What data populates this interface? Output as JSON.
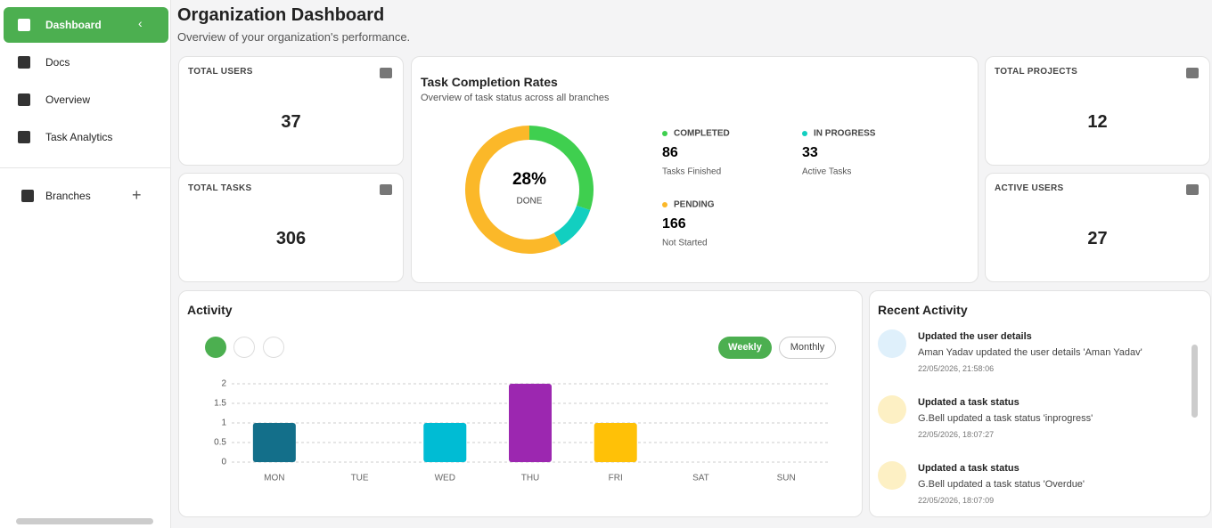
{
  "sidebar": {
    "items": [
      "Dashboard",
      "Docs",
      "Overview",
      "Task Analytics"
    ],
    "branches": "Branches"
  },
  "header": {
    "title": "Organization Dashboard",
    "subtitle": "Overview of your organization's performance."
  },
  "stats": [
    {
      "label": "TOTAL USERS",
      "value": 37
    },
    {
      "label": "TOTAL TASKS",
      "value": 306
    },
    {
      "label": "TOTAL PROJECTS",
      "value": 12
    },
    {
      "label": "ACTIVE USERS",
      "value": 27
    }
  ],
  "task_completion": {
    "title": "Task Completion Rates",
    "subtitle": "Overview of task status across all branches",
    "center_label": "28%",
    "center_caption": "DONE",
    "chart": {
      "type": "donut",
      "categories": [
        "COMPLETED",
        "IN PROGRESS",
        "PENDING"
      ],
      "values": [
        86,
        33,
        166
      ],
      "captions": [
        "Tasks Finished",
        "Active Tasks",
        "Not Started"
      ],
      "colors": [
        "#3fcf4f",
        "#12cfc0",
        "#fbb829"
      ]
    }
  },
  "activity": {
    "title": "Activity",
    "toggles": [
      "Weekly",
      "Monthly"
    ],
    "chart": {
      "type": "bar",
      "categories": [
        "MON",
        "TUE",
        "WED",
        "THU",
        "FRI",
        "SAT",
        "SUN"
      ],
      "values": [
        1,
        0,
        1,
        2,
        1,
        0,
        0
      ],
      "colors": [
        "#136f8a",
        "#136f8a",
        "#00bcd4",
        "#9c27b0",
        "#ffc107",
        "#ffc107",
        "#ffc107"
      ],
      "ylim": [
        0,
        2
      ],
      "yticks": [
        0,
        0.5,
        1,
        1.5,
        2
      ],
      "grid": true
    }
  },
  "recent_activity": {
    "title": "Recent Activity",
    "items": [
      {
        "title": "Updated the user details",
        "text": "Aman Yadav updated the user details 'Aman Yadav'",
        "time": "22/05/2026, 21:58:06"
      },
      {
        "title": "Updated a task status",
        "text": "G.Bell updated a task status 'inprogress'",
        "time": "22/05/2026, 18:07:27"
      },
      {
        "title": "Updated a task status",
        "text": "G.Bell updated a task status 'Overdue'",
        "time": "22/05/2026, 18:07:09"
      }
    ]
  }
}
